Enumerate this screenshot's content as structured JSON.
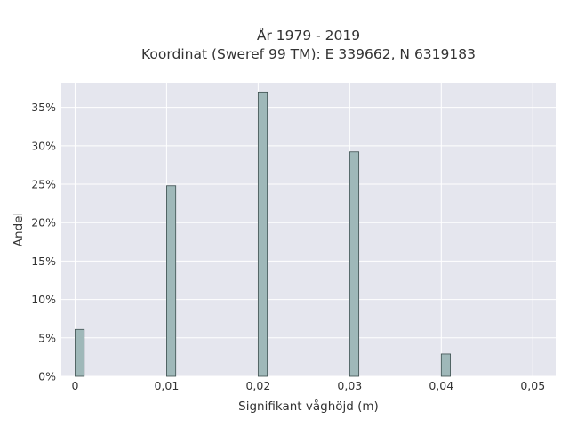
{
  "chart_data": {
    "type": "bar",
    "title_line1": "År 1979 - 2019",
    "title_line2": "Koordinat (Sweref 99 TM): E 339662, N 6319183",
    "xlabel": "Signifikant våghöjd (m)",
    "ylabel": "Andel",
    "x_ticks": [
      "0",
      "0,01",
      "0,02",
      "0,03",
      "0,04",
      "0,05"
    ],
    "x_tick_values": [
      0,
      0.01,
      0.02,
      0.03,
      0.04,
      0.05
    ],
    "y_ticks": [
      "0%",
      "5%",
      "10%",
      "15%",
      "20%",
      "25%",
      "30%",
      "35%"
    ],
    "y_tick_values": [
      0,
      5,
      10,
      15,
      20,
      25,
      30,
      35
    ],
    "xlim": [
      -0.0015,
      0.0525
    ],
    "ylim": [
      0,
      38.2
    ],
    "x": [
      0,
      0.01,
      0.02,
      0.03,
      0.04
    ],
    "values": [
      6.1,
      24.8,
      37.0,
      29.2,
      2.9
    ],
    "bar_width": 0.001,
    "grid": true,
    "colors": {
      "plot_bg": "#e5e6ee",
      "grid": "#ffffff",
      "bar_fill": "#9fb8b9",
      "bar_stroke": "#3d4f4f"
    }
  }
}
